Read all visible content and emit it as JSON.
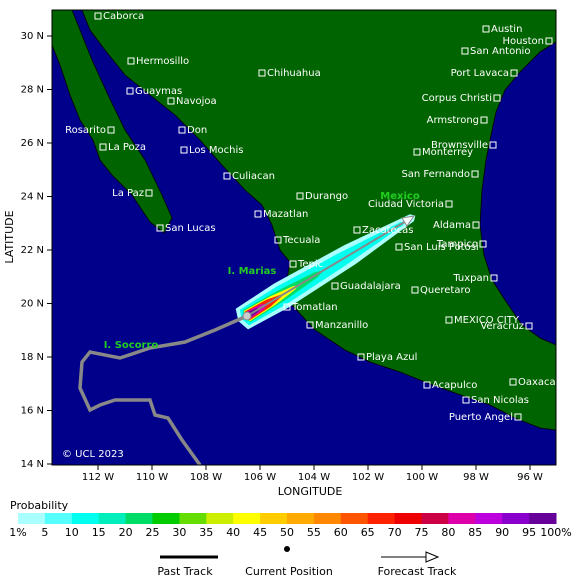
{
  "axes": {
    "latitude_label": "LATITUDE",
    "longitude_label": "LONGITUDE",
    "lat_ticks": [
      "30 N",
      "28 N",
      "26 N",
      "24 N",
      "22 N",
      "20 N",
      "18 N",
      "16 N",
      "14 N"
    ],
    "lon_ticks": [
      "112 W",
      "110 W",
      "108 W",
      "106 W",
      "104 W",
      "102 W",
      "100 W",
      "98 W",
      "96 W"
    ]
  },
  "places": [
    "Caborca",
    "Hermosillo",
    "Guaymas",
    "Navojoa",
    "Chihuahua",
    "Austin",
    "Houston",
    "San Antonio",
    "Port Lavaca",
    "Corpus Christi",
    "Armstrong",
    "Brownsville",
    "Monterrey",
    "San Fernando",
    "Ciudad Victoria",
    "Rosarito",
    "Don",
    "La Poza",
    "Los Mochis",
    "Culiacan",
    "La Paz",
    "Durango",
    "Mazatlan",
    "San Lucas",
    "Aldama",
    "Zacatecas",
    "Tampico",
    "Tecuala",
    "San Luis Potosi",
    "Tepic",
    "Tuxpan",
    "Guadalajara",
    "Queretaro",
    "Tomatlan",
    "MEXICO CITY",
    "Veracruz",
    "Manzanillo",
    "Playa Azul",
    "Oaxaca",
    "Acapulco",
    "San Nicolas",
    "Puerto Angel"
  ],
  "regions": [
    "Mexico",
    "I. Marias",
    "I. Socorro"
  ],
  "copyright": "© UCL 2023",
  "legend": {
    "title": "Probability",
    "scale": [
      "1%",
      "5",
      "10",
      "15",
      "20",
      "25",
      "30",
      "35",
      "40",
      "45",
      "50",
      "55",
      "60",
      "65",
      "70",
      "75",
      "80",
      "85",
      "90",
      "95",
      "100%"
    ],
    "past": "Past Track",
    "current": "Current Position",
    "forecast": "Forecast Track"
  }
}
